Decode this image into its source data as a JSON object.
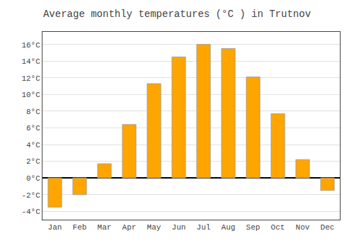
{
  "chart_data": {
    "type": "bar",
    "title": "Average monthly temperatures (°C ) in Trutnov",
    "categories": [
      "Jan",
      "Feb",
      "Mar",
      "Apr",
      "May",
      "Jun",
      "Jul",
      "Aug",
      "Sep",
      "Oct",
      "Nov",
      "Dec"
    ],
    "values": [
      -3.5,
      -2.0,
      1.7,
      6.4,
      11.3,
      14.5,
      16.0,
      15.5,
      12.1,
      7.7,
      2.2,
      -1.5
    ],
    "color": "#FFA500",
    "ylim": [
      -5.0,
      17.5
    ],
    "yticks": [
      {
        "value": -4,
        "label": "-4°C"
      },
      {
        "value": -2,
        "label": "-2°C"
      },
      {
        "value": 0,
        "label": "0°C"
      },
      {
        "value": 2,
        "label": "2°C"
      },
      {
        "value": 4,
        "label": "4°C"
      },
      {
        "value": 6,
        "label": "6°C"
      },
      {
        "value": 8,
        "label": "8°C"
      },
      {
        "value": 10,
        "label": "10°C"
      },
      {
        "value": 12,
        "label": "12°C"
      },
      {
        "value": 14,
        "label": "14°C"
      },
      {
        "value": 16,
        "label": "16°C"
      }
    ],
    "grid": true
  }
}
